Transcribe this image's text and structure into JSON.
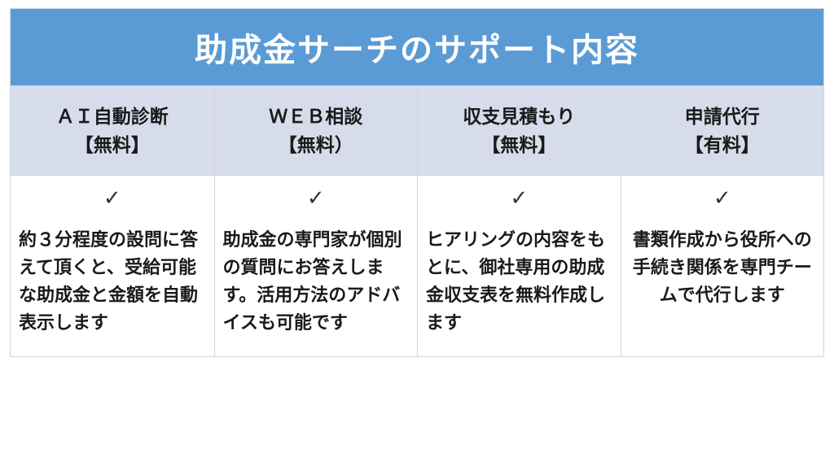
{
  "table": {
    "title": "助成金サーチのサポート内容",
    "title_bg": "#5b9bd5",
    "title_color": "#ffffff",
    "title_fontsize": 40,
    "header_bg": "#d6dcea",
    "header_color": "#1a1a1a",
    "header_fontsize": 23,
    "body_bg": "#ffffff",
    "body_color": "#1a1a1a",
    "desc_fontsize": 22,
    "check_color": "#333333",
    "border_color": "#d0d5e0",
    "columns": [
      {
        "header_line1": "ＡＩ自動診断",
        "header_line2": "【無料】",
        "check": "✓",
        "description": "約３分程度の設問に答えて頂くと、受給可能な助成金と金額を自動表示します"
      },
      {
        "header_line1": "ＷＥＢ相談",
        "header_line2": "【無料）",
        "check": "✓",
        "description": "助成金の専門家が個別の質問にお答えします。活用方法のアドバイスも可能です"
      },
      {
        "header_line1": "収支見積もり",
        "header_line2": "【無料】",
        "check": "✓",
        "description": "ヒアリングの内容をもとに、御社専用の助成金収支表を無料作成します"
      },
      {
        "header_line1": "申請代行",
        "header_line2": "【有料】",
        "check": "✓",
        "description": "書類作成から役所への手続き関係を専門チームで代行します"
      }
    ]
  }
}
